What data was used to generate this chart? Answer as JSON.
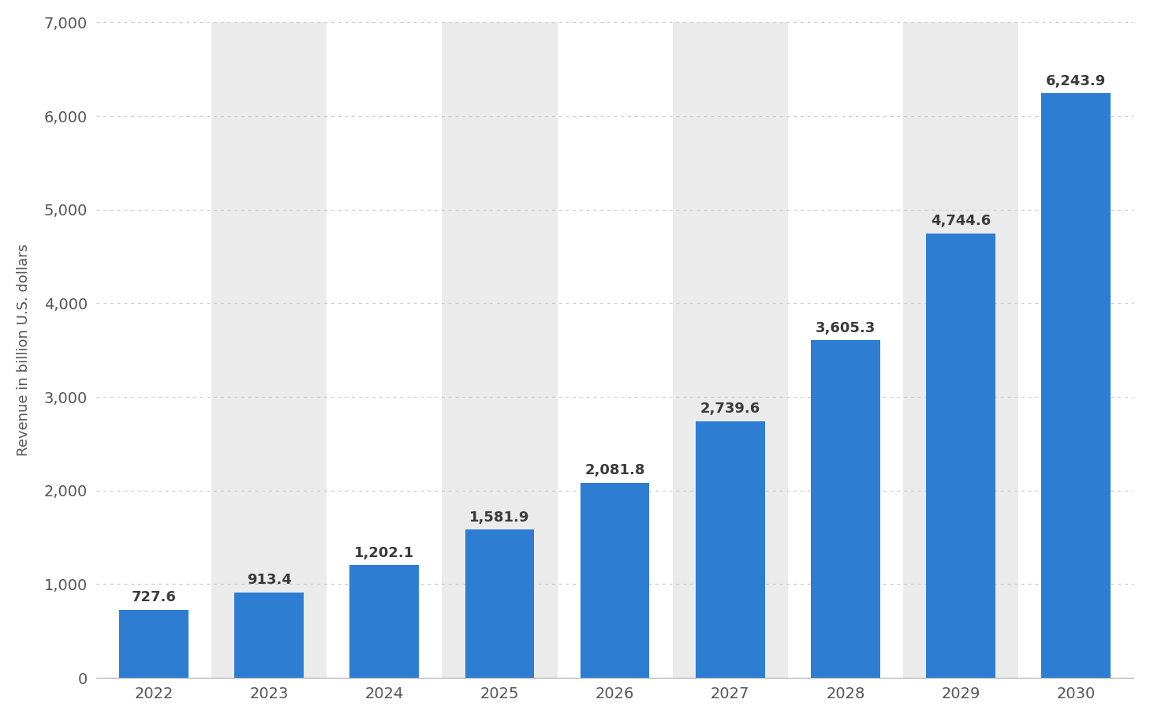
{
  "years": [
    "2022",
    "2023",
    "2024",
    "2025",
    "2026",
    "2027",
    "2028",
    "2029",
    "2030"
  ],
  "values": [
    727.6,
    913.4,
    1202.1,
    1581.9,
    2081.8,
    2739.6,
    3605.3,
    4744.6,
    6243.9
  ],
  "bar_color": "#2d7dd2",
  "background_color": "#ffffff",
  "stripe_color": "#ebebeb",
  "ylabel": "Revenue in billion U.S. dollars",
  "ylim": [
    0,
    7000
  ],
  "yticks": [
    0,
    1000,
    2000,
    3000,
    4000,
    5000,
    6000,
    7000
  ],
  "grid_color": "#cccccc",
  "tick_fontsize": 14,
  "bar_label_fontsize": 13,
  "ylabel_fontsize": 13,
  "stripe_indices": [
    1,
    3,
    5,
    7
  ]
}
